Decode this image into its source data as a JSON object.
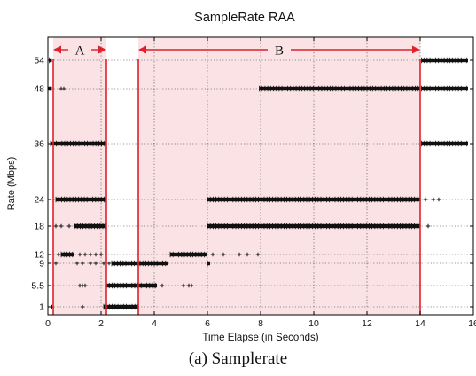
{
  "caption": "(a) Samplerate",
  "colors": {
    "region_fill": "#fbe3e5",
    "region_line": "#e0202a",
    "marker": "#111111",
    "grid": "#333333"
  },
  "chart_data": {
    "type": "scatter",
    "title": "SampleRate RAA",
    "xlabel": "Time Elapse (in Seconds)",
    "ylabel": "Rate (Mbps)",
    "xlim": [
      0,
      16
    ],
    "x_ticks": [
      0,
      2,
      4,
      6,
      8,
      10,
      12,
      14,
      16
    ],
    "y_levels": [
      1,
      5.5,
      9,
      12,
      18,
      24,
      36,
      48,
      54
    ],
    "y_tick_labels": [
      "1",
      "5.5",
      "9",
      "12",
      "18",
      "24",
      "36",
      "48",
      "54"
    ],
    "grid": true,
    "marker": "+",
    "regions": [
      {
        "label": "A",
        "x_start": 0.2,
        "x_end": 2.2
      },
      {
        "label": "B",
        "x_start": 3.4,
        "x_end": 14.0
      }
    ],
    "gap_lines_x": [
      0.2,
      2.2,
      3.4,
      14.0
    ],
    "series": [
      {
        "rate": 54,
        "segments": [
          [
            0.05,
            0.15
          ],
          [
            14.05,
            15.8
          ]
        ],
        "points": [
          15.2
        ]
      },
      {
        "rate": 48,
        "segments": [
          [
            0.0,
            0.15
          ],
          [
            7.95,
            14.0
          ],
          [
            14.05,
            15.8
          ]
        ],
        "points": [
          0.5,
          0.6
        ]
      },
      {
        "rate": 36,
        "segments": [
          [
            0.1,
            2.2
          ],
          [
            14.05,
            15.8
          ]
        ],
        "points": []
      },
      {
        "rate": 24,
        "segments": [
          [
            0.3,
            2.2
          ],
          [
            6.0,
            14.0
          ]
        ],
        "points": [
          14.2,
          14.5,
          14.7
        ]
      },
      {
        "rate": 18,
        "segments": [
          [
            1.0,
            2.2
          ],
          [
            6.0,
            14.0
          ]
        ],
        "points": [
          0.3,
          0.5,
          0.8,
          14.3
        ]
      },
      {
        "rate": 12,
        "segments": [
          [
            0.5,
            1.0
          ],
          [
            4.6,
            6.0
          ]
        ],
        "points": [
          0.4,
          1.2,
          1.4,
          1.6,
          1.8,
          2.0,
          5.4,
          5.7,
          6.2,
          6.6,
          7.2,
          7.5,
          7.9
        ]
      },
      {
        "rate": 9,
        "segments": [
          [
            2.4,
            4.5
          ],
          [
            6.0,
            6.1
          ]
        ],
        "points": [
          0.3,
          1.1,
          1.3,
          1.6,
          1.8,
          2.1,
          2.3
        ]
      },
      {
        "rate": 5.5,
        "segments": [
          [
            2.2,
            3.4
          ],
          [
            3.4,
            4.1
          ]
        ],
        "points": [
          1.2,
          1.3,
          1.4,
          4.3,
          5.1,
          5.3,
          5.4
        ]
      },
      {
        "rate": 1,
        "segments": [
          [
            2.1,
            3.4
          ]
        ],
        "points": [
          0.15,
          1.3,
          2.8
        ]
      }
    ]
  }
}
